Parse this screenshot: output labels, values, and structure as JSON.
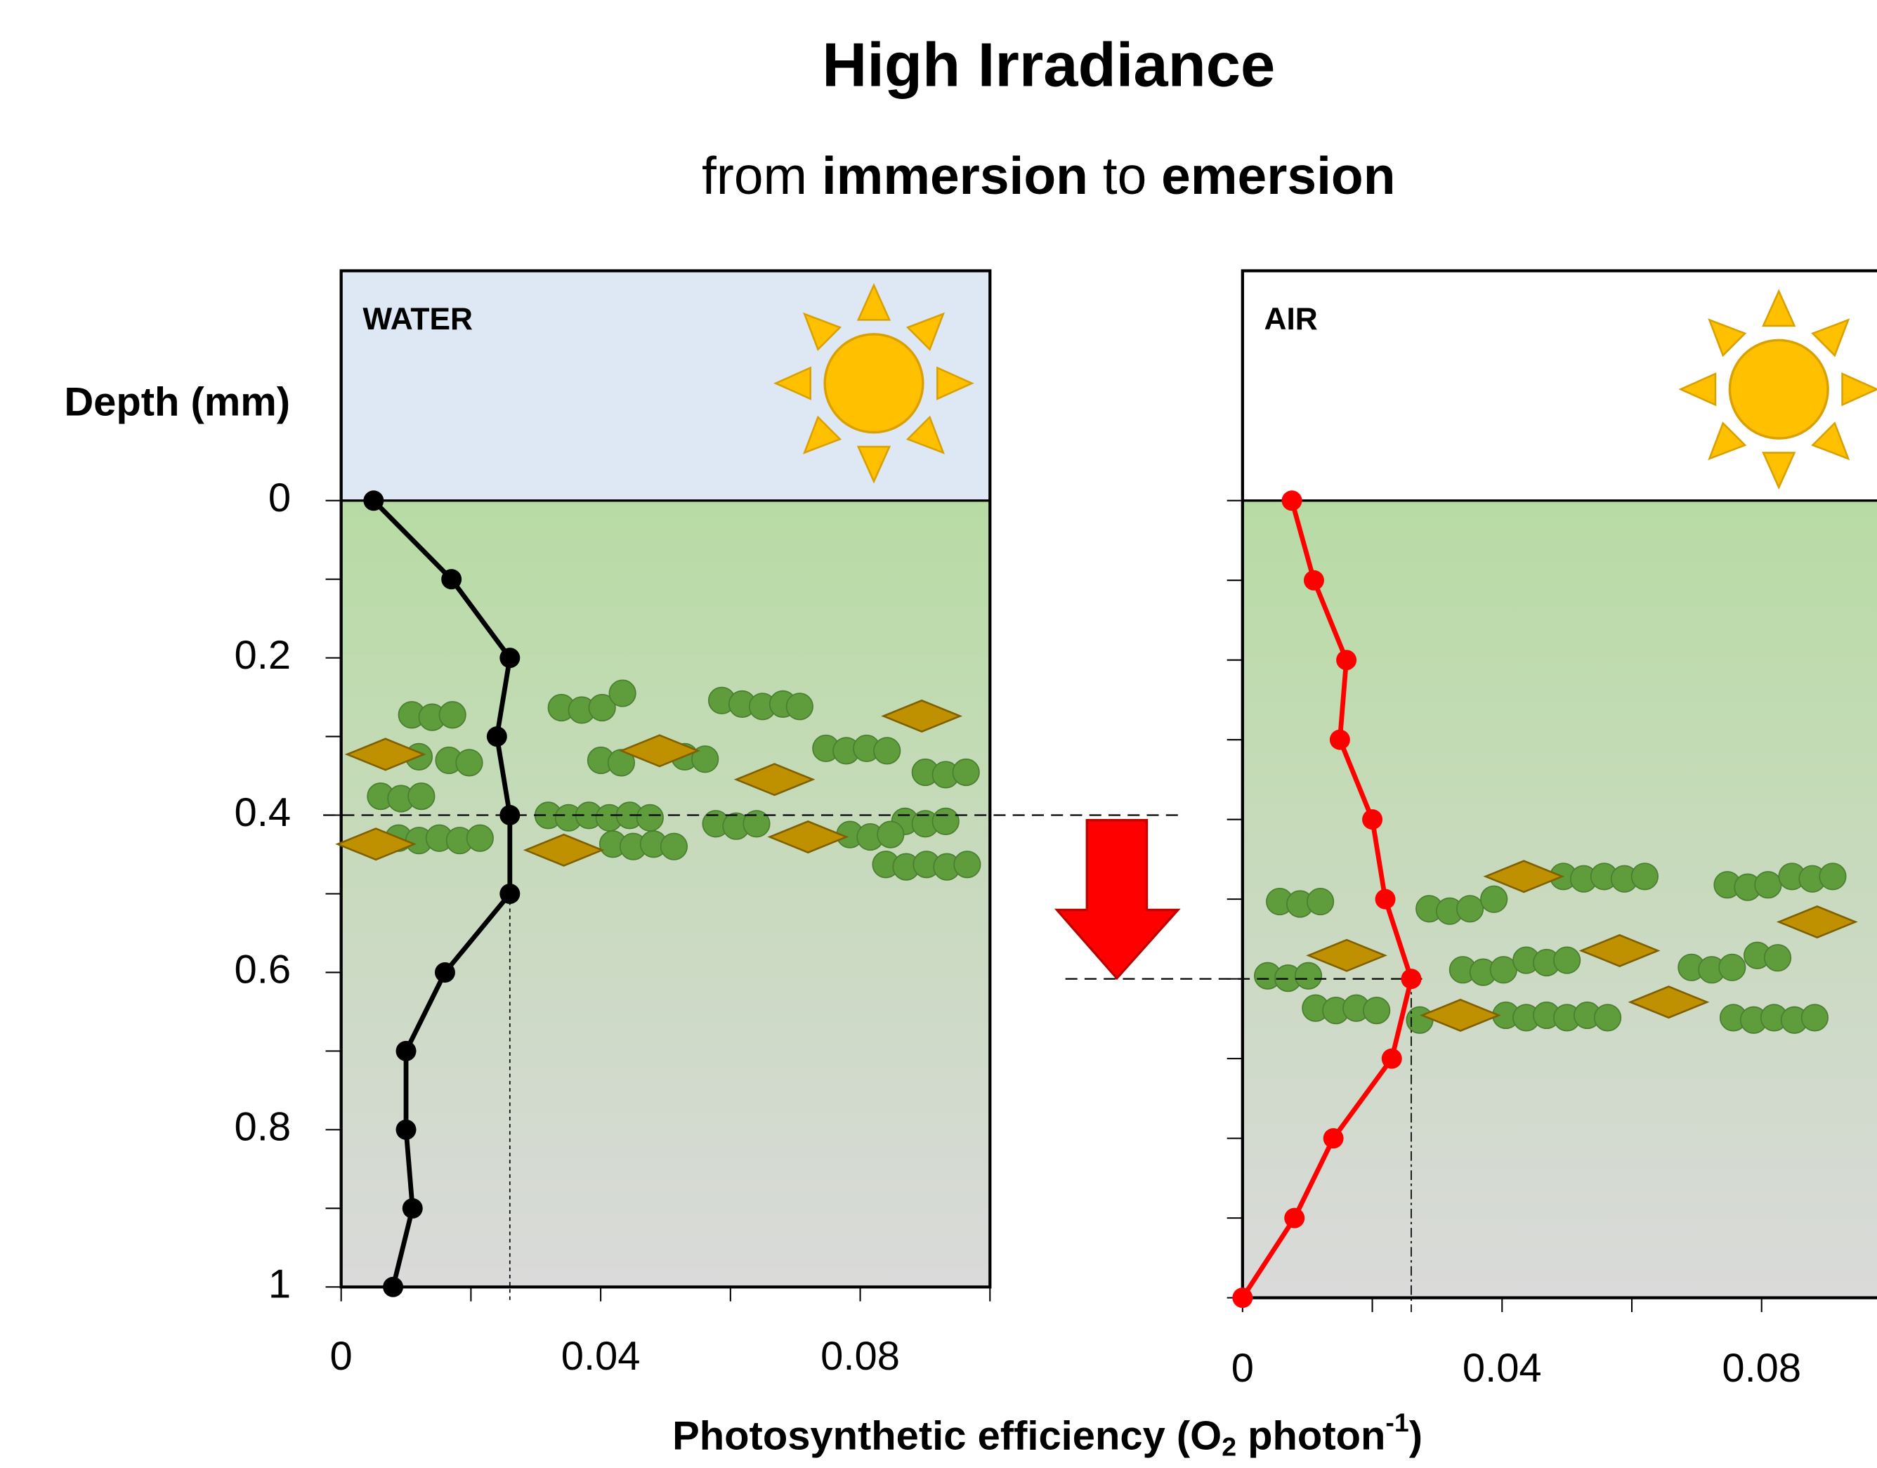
{
  "header": {
    "title": "High Irradiance",
    "subtitle": [
      "from ",
      "immersion",
      " to ",
      "emersion"
    ]
  },
  "ylabel": "Depth (mm)",
  "xlabel": [
    "Photosynthetic efficiency (O",
    "2",
    " photon",
    "-1",
    ")"
  ],
  "chart_data": [
    {
      "type": "line",
      "label": "WATER",
      "top_color": "#dde8f4",
      "xlim": [
        0,
        0.1
      ],
      "xticks": [
        0,
        0.04,
        0.08
      ],
      "xminor": [
        0.02,
        0.06,
        0.1
      ],
      "ylim": [
        0,
        1
      ],
      "yticks": [
        0,
        0.2,
        0.4,
        0.6,
        0.8,
        1
      ],
      "yminor": [
        0.1,
        0.3,
        0.5,
        0.7,
        0.9
      ],
      "ytick_labels": true,
      "reference": {
        "x": 0.026,
        "y": 0.4
      },
      "series": [
        {
          "color": "#000000",
          "x": [
            0.005,
            0.017,
            0.026,
            0.024,
            0.026,
            0.026,
            0.016,
            0.01,
            0.01,
            0.011,
            0.008
          ],
          "values": [
            0,
            0.1,
            0.2,
            0.3,
            0.4,
            0.5,
            0.6,
            0.7,
            0.8,
            0.9,
            1
          ]
        }
      ]
    },
    {
      "type": "line",
      "label": "AIR",
      "top_color": "#ffffff",
      "xlim": [
        0,
        0.1
      ],
      "xticks": [
        0,
        0.04,
        0.08
      ],
      "xminor": [
        0.02,
        0.06
      ],
      "ylim": [
        0,
        1
      ],
      "yticks": [
        0,
        0.1,
        0.2,
        0.3,
        0.4,
        0.5,
        0.6,
        0.7,
        0.8,
        0.9,
        1
      ],
      "yminor": [],
      "ytick_labels": false,
      "reference": {
        "x": 0.026,
        "y": 0.6
      },
      "series": [
        {
          "color": "#ff0000",
          "x": [
            0.0076,
            0.011,
            0.016,
            0.015,
            0.02,
            0.022,
            0.026,
            0.023,
            0.014,
            0.008,
            0
          ],
          "values": [
            0,
            0.1,
            0.2,
            0.3,
            0.4,
            0.5,
            0.6,
            0.7,
            0.8,
            0.9,
            1
          ]
        }
      ]
    }
  ]
}
